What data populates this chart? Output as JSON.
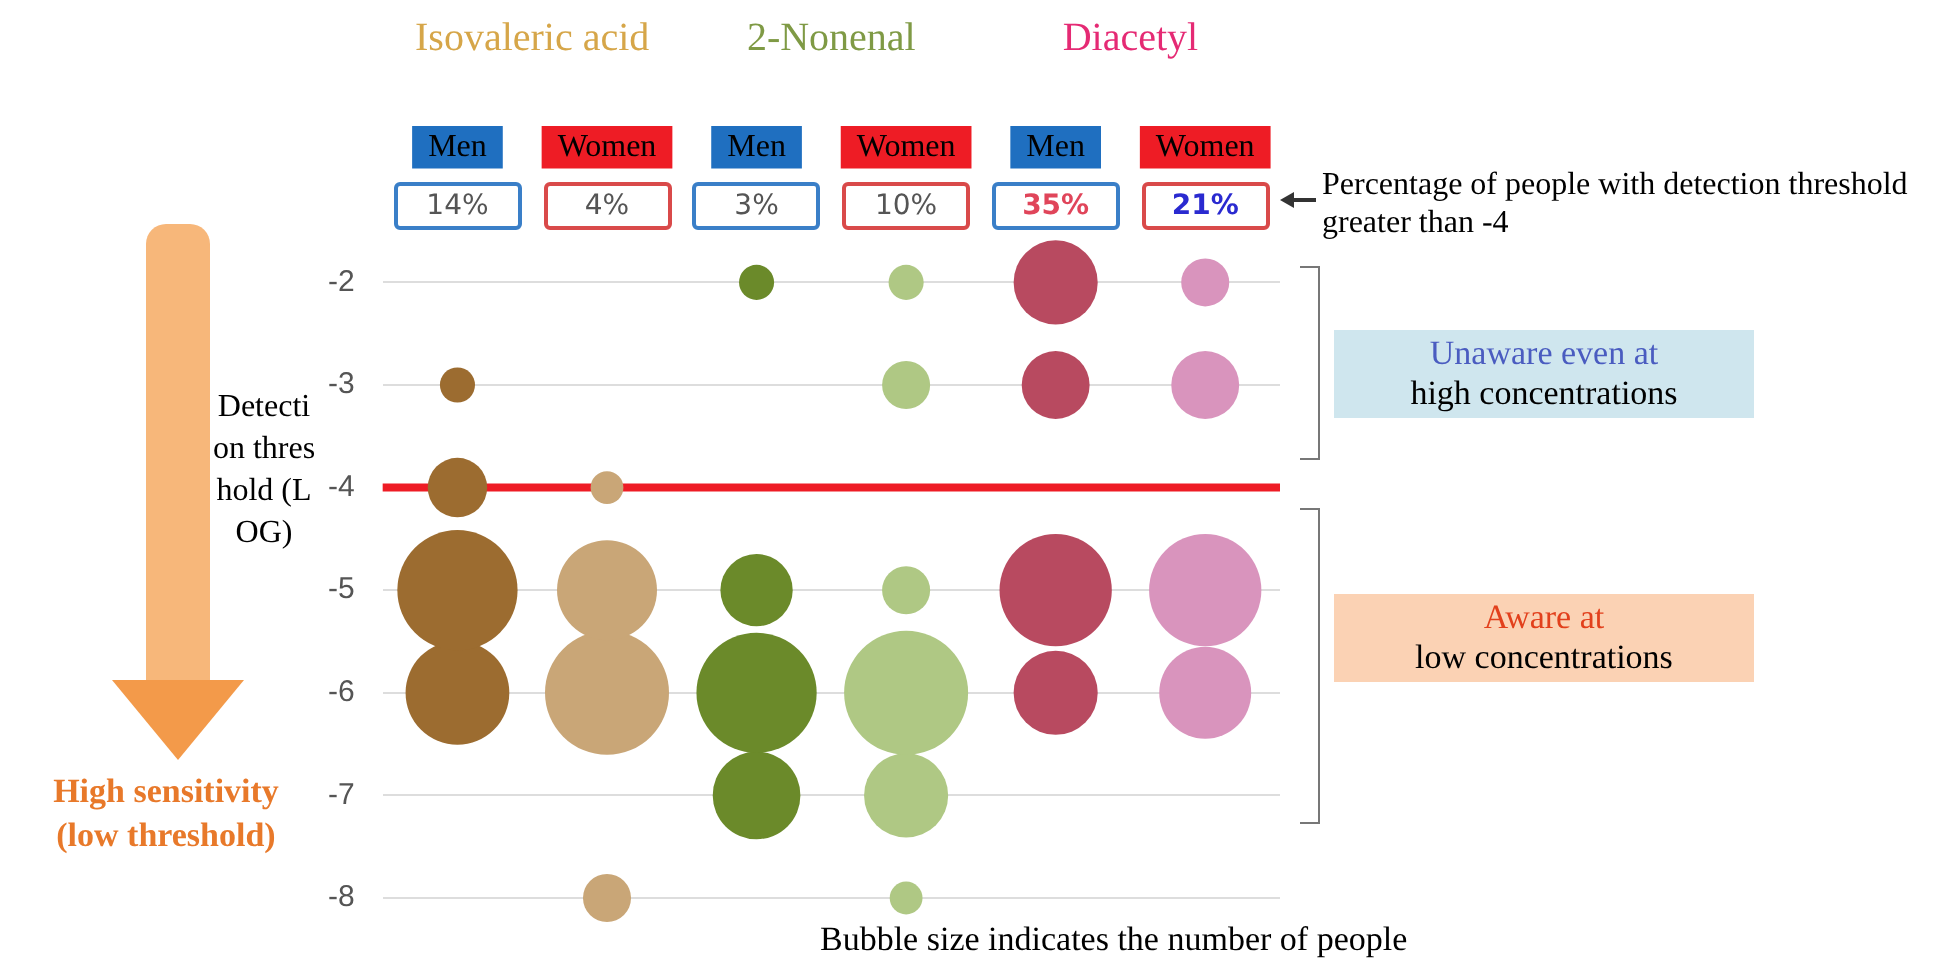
{
  "chart_data": {
    "type": "bubble",
    "ylabel": "Detection threshold (LOG)",
    "categories": [
      "Men",
      "Women",
      "Men",
      "Women",
      "Men",
      "Women"
    ],
    "series": [
      {
        "colors": [
          null,
          null,
          "#6b8a2a",
          "#afc884",
          "#b84a60",
          "#d994bd"
        ],
        "values": [
          null,
          null,
          -2,
          -2,
          -2,
          -2
        ],
        "sizes": [
          null,
          null,
          0.08,
          0.08,
          0.46,
          0.15
        ]
      },
      {
        "colors": [
          "#9c6c30",
          null,
          null,
          "#afc884",
          "#b84a60",
          "#d994bd"
        ],
        "values": [
          -3,
          null,
          null,
          -3,
          -3,
          -3
        ],
        "sizes": [
          0.08,
          null,
          null,
          0.15,
          0.3,
          0.3
        ]
      },
      {
        "colors": [
          "#9c6c30",
          "#c9a677",
          null,
          null,
          null,
          null
        ],
        "values": [
          -4,
          -4,
          null,
          null,
          null,
          null
        ],
        "sizes": [
          0.23,
          0.07,
          null,
          null,
          null,
          null
        ]
      },
      {
        "colors": [
          "#9c6c30",
          "#c9a677",
          "#6b8a2a",
          "#afc884",
          "#b84a60",
          "#d994bd"
        ],
        "values": [
          -5,
          -5,
          -5,
          -5,
          -5,
          -5
        ],
        "sizes": [
          0.94,
          0.65,
          0.34,
          0.15,
          0.82,
          0.82
        ]
      },
      {
        "colors": [
          "#9c6c30",
          "#c9a677",
          "#6b8a2a",
          "#afc884",
          "#b84a60",
          "#d994bd"
        ],
        "values": [
          -6,
          -6,
          -6,
          -6,
          -6,
          -6
        ],
        "sizes": [
          0.7,
          1,
          0.94,
          1,
          0.46,
          0.55
        ]
      },
      {
        "colors": [
          null,
          null,
          "#6b8a2a",
          "#afc884",
          null,
          null
        ],
        "values": [
          null,
          null,
          -7,
          -7,
          null,
          null
        ],
        "sizes": [
          null,
          null,
          0.5,
          0.46,
          null,
          null
        ]
      },
      {
        "colors": [
          null,
          "#c9a677",
          null,
          "#afc884",
          null,
          null
        ],
        "values": [
          null,
          -8,
          null,
          -8,
          null,
          null
        ],
        "sizes": [
          null,
          0.15,
          null,
          0.07,
          null,
          null
        ]
      }
    ],
    "ylim": [
      -8,
      -2
    ],
    "yticks": [
      -2,
      -3,
      -4,
      -5,
      -6,
      -7,
      -8
    ],
    "grid": "y",
    "legend": false,
    "marker": "circle",
    "ref_lines": [
      {
        "axis": "y",
        "value": -4,
        "color": "#ee1c25"
      }
    ],
    "annotations": [
      "Isovaleric acid",
      "2-Nonenal",
      "Diacetyl",
      "14%",
      "4%",
      "3%",
      "10%",
      "35%",
      "21%",
      "Percentage of people with detection threshold greater than -4",
      "Unaware even at\nhigh concentrations",
      "Aware at\nlow concentrations",
      "High sensitivity\n(low threshold)",
      "Bubble size indicates the number of people"
    ]
  }
}
